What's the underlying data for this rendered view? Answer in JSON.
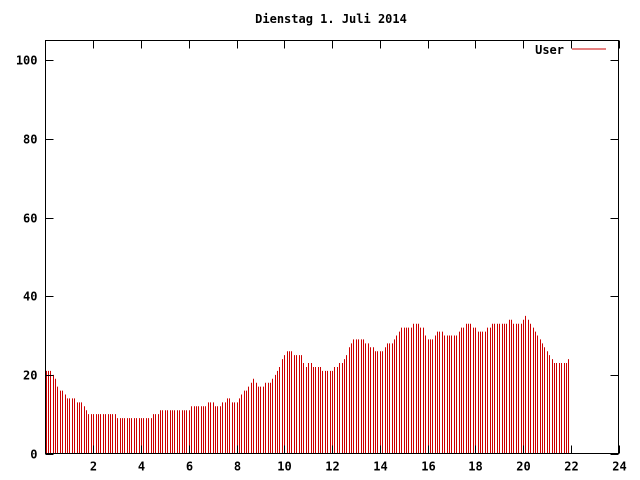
{
  "chart_data": {
    "type": "bar",
    "title": "Dienstag 1. Juli 2014",
    "xlabel": "",
    "ylabel": "",
    "xlim": [
      0,
      24
    ],
    "ylim": [
      0,
      105
    ],
    "x_ticks": [
      2,
      4,
      6,
      8,
      10,
      12,
      14,
      16,
      18,
      20,
      22,
      24
    ],
    "y_ticks": [
      0,
      20,
      40,
      60,
      80,
      100
    ],
    "grid": false,
    "legend_position": "top-right",
    "series": [
      {
        "name": "User",
        "color": "#cc0000",
        "x_step_hours": 0.1,
        "values": [
          21,
          21,
          21,
          20,
          19,
          17,
          16,
          16,
          15,
          14,
          14,
          14,
          14,
          13,
          13,
          13,
          12,
          11,
          10,
          10,
          10,
          10,
          10,
          10,
          10,
          10,
          10,
          10,
          10,
          10,
          9,
          9,
          9,
          9,
          9,
          9,
          9,
          9,
          9,
          9,
          9,
          9,
          9,
          9,
          9,
          10,
          10,
          10,
          11,
          11,
          11,
          11,
          11,
          11,
          11,
          11,
          11,
          11,
          11,
          11,
          11,
          12,
          12,
          12,
          12,
          12,
          12,
          12,
          13,
          13,
          13,
          12,
          12,
          12,
          13,
          13,
          14,
          14,
          13,
          13,
          13,
          14,
          15,
          16,
          16,
          17,
          18,
          19,
          18,
          17,
          17,
          17,
          18,
          18,
          18,
          19,
          20,
          21,
          22,
          24,
          25,
          26,
          26,
          26,
          25,
          25,
          25,
          25,
          23,
          22,
          23,
          23,
          22,
          22,
          22,
          22,
          21,
          21,
          21,
          21,
          21,
          22,
          22,
          23,
          23,
          24,
          25,
          27,
          28,
          29,
          29,
          29,
          29,
          29,
          28,
          28,
          27,
          27,
          26,
          26,
          26,
          26,
          27,
          28,
          28,
          28,
          29,
          30,
          31,
          32,
          32,
          32,
          32,
          32,
          33,
          33,
          33,
          32,
          32,
          30,
          29,
          29,
          29,
          30,
          31,
          31,
          31,
          30,
          30,
          30,
          30,
          30,
          30,
          31,
          32,
          32,
          33,
          33,
          33,
          32,
          32,
          31,
          31,
          31,
          31,
          32,
          32,
          33,
          33,
          33,
          33,
          33,
          33,
          33,
          34,
          34,
          33,
          33,
          33,
          33,
          34,
          35,
          34,
          33,
          32,
          31,
          30,
          29,
          28,
          27,
          26,
          25,
          24,
          23,
          23,
          23,
          23,
          23,
          23,
          24
        ]
      }
    ]
  }
}
